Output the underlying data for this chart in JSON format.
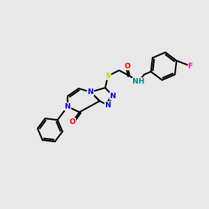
{
  "background_color": "#e8e8e8",
  "atom_colors": {
    "N": "#0000ee",
    "O": "#ff0000",
    "S": "#cccc00",
    "F": "#ff00aa",
    "C": "#000000",
    "H": "#008888"
  },
  "figsize": [
    3.0,
    3.0
  ],
  "dpi": 100,
  "lw": 1.6,
  "fs": 7.5
}
